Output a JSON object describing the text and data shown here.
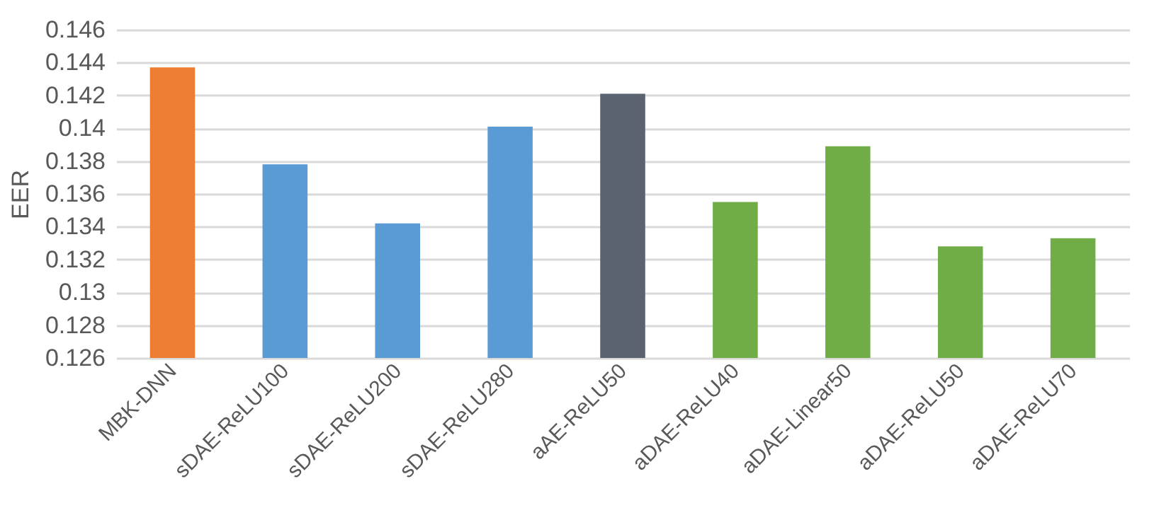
{
  "chart_data": {
    "type": "bar",
    "ylabel": "EER",
    "categories": [
      "MBK-DNN",
      "sDAE-ReLU100",
      "sDAE-ReLU200",
      "sDAE-ReLU280",
      "aAE-ReLU50",
      "aDAE-ReLU40",
      "aDAE-Linear50",
      "aDAE-ReLU50",
      "aDAE-ReLU70"
    ],
    "values": [
      0.1437,
      0.1378,
      0.1342,
      0.1401,
      0.1421,
      0.1355,
      0.1389,
      0.1328,
      0.1333
    ],
    "colors": [
      "#ed7d31",
      "#5b9bd5",
      "#5b9bd5",
      "#5b9bd5",
      "#5c6370",
      "#70ad47",
      "#70ad47",
      "#70ad47",
      "#70ad47"
    ],
    "ylim": [
      0.126,
      0.146
    ],
    "yticks": [
      0.126,
      0.128,
      0.13,
      0.132,
      0.134,
      0.136,
      0.138,
      0.14,
      0.142,
      0.144,
      0.146
    ],
    "grid": "y"
  }
}
